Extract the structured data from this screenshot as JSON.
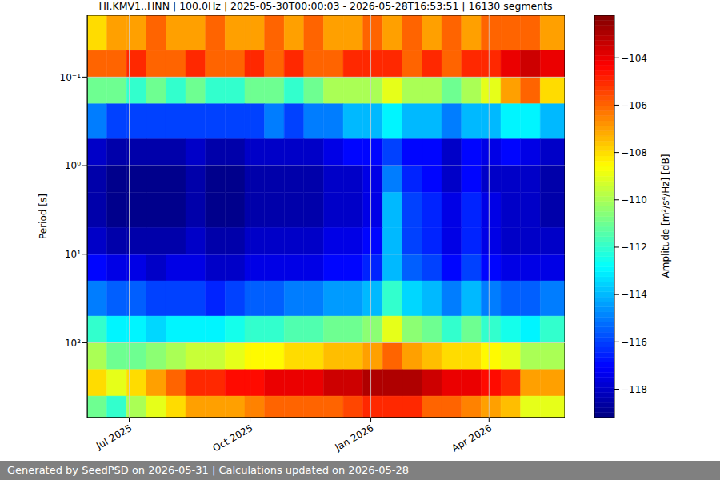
{
  "chart_data": {
    "type": "heatmap",
    "title": "HI.KMV1..HNN | 100.0Hz | 2025-05-30T00:00:03 - 2026-05-28T16:53:51 | 16130 segments",
    "footer": "Generated by SeedPSD on 2026-05-31 | Calculations updated on 2026-05-28",
    "y_label": "Period [s]",
    "colorbar_label": "Amplitude [m²/s⁴/Hz] [dB]",
    "log": "y",
    "grid": true,
    "xlim": [
      "2025-05-30T00:00:03",
      "2026-05-28T16:53:51"
    ],
    "xticks": [
      {
        "value": "2025-07-01",
        "label": "Jul 2025"
      },
      {
        "value": "2025-10-01",
        "label": "Oct 2025"
      },
      {
        "value": "2026-01-01",
        "label": "Jan 2026"
      },
      {
        "value": "2026-04-01",
        "label": "Apr 2026"
      }
    ],
    "ylim": [
      0.02,
      700
    ],
    "yticks": [
      {
        "value": 0.1,
        "label": "10⁻¹"
      },
      {
        "value": 1,
        "label": "10⁰"
      },
      {
        "value": 10,
        "label": "10¹"
      },
      {
        "value": 100,
        "label": "10²"
      }
    ],
    "x_bins": [
      "2025-05-30T00:00:03",
      "2025-06-14",
      "2025-06-29",
      "2025-07-14",
      "2025-07-29",
      "2025-08-13",
      "2025-08-28",
      "2025-09-12",
      "2025-09-27",
      "2025-10-12",
      "2025-10-27",
      "2025-11-11",
      "2025-11-26",
      "2025-12-11",
      "2025-12-26",
      "2026-01-10",
      "2026-01-25",
      "2026-02-09",
      "2026-02-24",
      "2026-03-11",
      "2026-03-26",
      "2026-04-10",
      "2026-04-25",
      "2026-05-10",
      "2026-05-28T16:53:51"
    ],
    "y_bins": [
      0.02,
      0.05,
      0.1,
      0.2,
      0.5,
      1,
      2,
      5,
      10,
      20,
      50,
      100,
      200,
      400,
      700
    ],
    "cells": [
      [
        -108,
        -107,
        -107,
        -106,
        -107,
        -107,
        -106,
        -107,
        -107,
        -106,
        -107,
        -106,
        -107,
        -107,
        -106,
        -107,
        -106,
        -107,
        -106,
        -107,
        -106,
        -106,
        -106,
        -107
      ],
      [
        -106,
        -106,
        -105,
        -106,
        -106,
        -105,
        -106,
        -106,
        -105,
        -106,
        -105,
        -106,
        -106,
        -105,
        -105,
        -105,
        -106,
        -105,
        -106,
        -105,
        -105,
        -104,
        -103.5,
        -104
      ],
      [
        -111,
        -111,
        -112,
        -111,
        -112,
        -111,
        -112,
        -112,
        -111,
        -111,
        -112,
        -111,
        -110,
        -110,
        -110,
        -109,
        -110,
        -110,
        -111,
        -110,
        -109,
        -107,
        -106,
        -108
      ],
      [
        -115,
        -116,
        -116,
        -116,
        -116,
        -116,
        -116,
        -116,
        -116,
        -115,
        -116,
        -115,
        -115,
        -114,
        -114,
        -113,
        -114,
        -114,
        -115,
        -114,
        -114,
        -113,
        -113,
        -114
      ],
      [
        -118,
        -118.5,
        -118.5,
        -118.5,
        -118.5,
        -118,
        -118.5,
        -118.5,
        -118,
        -118,
        -118,
        -118,
        -117.5,
        -117,
        -117,
        -116,
        -117,
        -117,
        -118,
        -117,
        -117.5,
        -117,
        -117.5,
        -118
      ],
      [
        -118.5,
        -119,
        -119,
        -119,
        -119,
        -118.5,
        -119,
        -119,
        -118.5,
        -118.5,
        -118.5,
        -118.5,
        -118,
        -118,
        -117.5,
        -115,
        -116.5,
        -117,
        -118,
        -117,
        -118,
        -118,
        -118,
        -118.5
      ],
      [
        -118.5,
        -119,
        -119,
        -119,
        -119,
        -118.5,
        -119,
        -119,
        -118.5,
        -118.5,
        -118.5,
        -118.5,
        -118,
        -118,
        -117.5,
        -114,
        -116,
        -116.5,
        -117.5,
        -116.5,
        -117.5,
        -118,
        -118,
        -118.5
      ],
      [
        -118,
        -118.5,
        -118.5,
        -118.5,
        -118.5,
        -118,
        -118.5,
        -118.5,
        -118,
        -118,
        -118,
        -118,
        -117.5,
        -117.5,
        -117,
        -114,
        -116,
        -116.5,
        -117.5,
        -116.5,
        -117.5,
        -118,
        -118,
        -118
      ],
      [
        -117,
        -117.5,
        -117.5,
        -118,
        -117.5,
        -117.5,
        -118,
        -118,
        -117.5,
        -117.5,
        -117.5,
        -117.5,
        -117,
        -117,
        -116.5,
        -114,
        -115.5,
        -116,
        -117,
        -116,
        -117,
        -117.5,
        -117.5,
        -117.5
      ],
      [
        -115,
        -115.5,
        -115.5,
        -116,
        -116,
        -116,
        -116.5,
        -116,
        -115.5,
        -115.5,
        -115,
        -115,
        -114.5,
        -114.5,
        -114,
        -112,
        -113.5,
        -114,
        -115,
        -114,
        -115,
        -115.5,
        -115.5,
        -115
      ],
      [
        -112,
        -113,
        -113,
        -113.5,
        -113,
        -113,
        -113,
        -112.5,
        -112,
        -112,
        -111.5,
        -111.5,
        -111,
        -111,
        -110.5,
        -109,
        -110.5,
        -111,
        -112,
        -111,
        -112,
        -112.5,
        -113,
        -112
      ],
      [
        -110,
        -111,
        -111,
        -110.5,
        -110,
        -109.5,
        -109.5,
        -109,
        -108.5,
        -108.5,
        -108,
        -108,
        -107.5,
        -107.5,
        -107,
        -106,
        -107,
        -107.5,
        -108,
        -108,
        -108.5,
        -109,
        -110,
        -110
      ],
      [
        -108,
        -109,
        -108,
        -107,
        -106,
        -105,
        -105,
        -104.5,
        -104.5,
        -104,
        -104,
        -104,
        -103.5,
        -103.5,
        -103,
        -103,
        -103,
        -103.5,
        -104,
        -104,
        -104.5,
        -105,
        -107,
        -107
      ],
      [
        -111,
        -112,
        -110,
        -109,
        -108,
        -107,
        -107,
        -107,
        -106.5,
        -106,
        -106,
        -106,
        -106,
        -105.5,
        -105,
        -105,
        -105,
        -106,
        -106,
        -106.5,
        -107,
        -107.5,
        -109,
        -109
      ]
    ],
    "colorbar_lim": [
      -119.2,
      -102.2
    ],
    "colorbar_ticks": [
      {
        "value": -104,
        "label": "−104"
      },
      {
        "value": -106,
        "label": "−106"
      },
      {
        "value": -108,
        "label": "−108"
      },
      {
        "value": -110,
        "label": "−110"
      },
      {
        "value": -112,
        "label": "−112"
      },
      {
        "value": -114,
        "label": "−114"
      },
      {
        "value": -116,
        "label": "−116"
      },
      {
        "value": -118,
        "label": "−118"
      }
    ]
  }
}
